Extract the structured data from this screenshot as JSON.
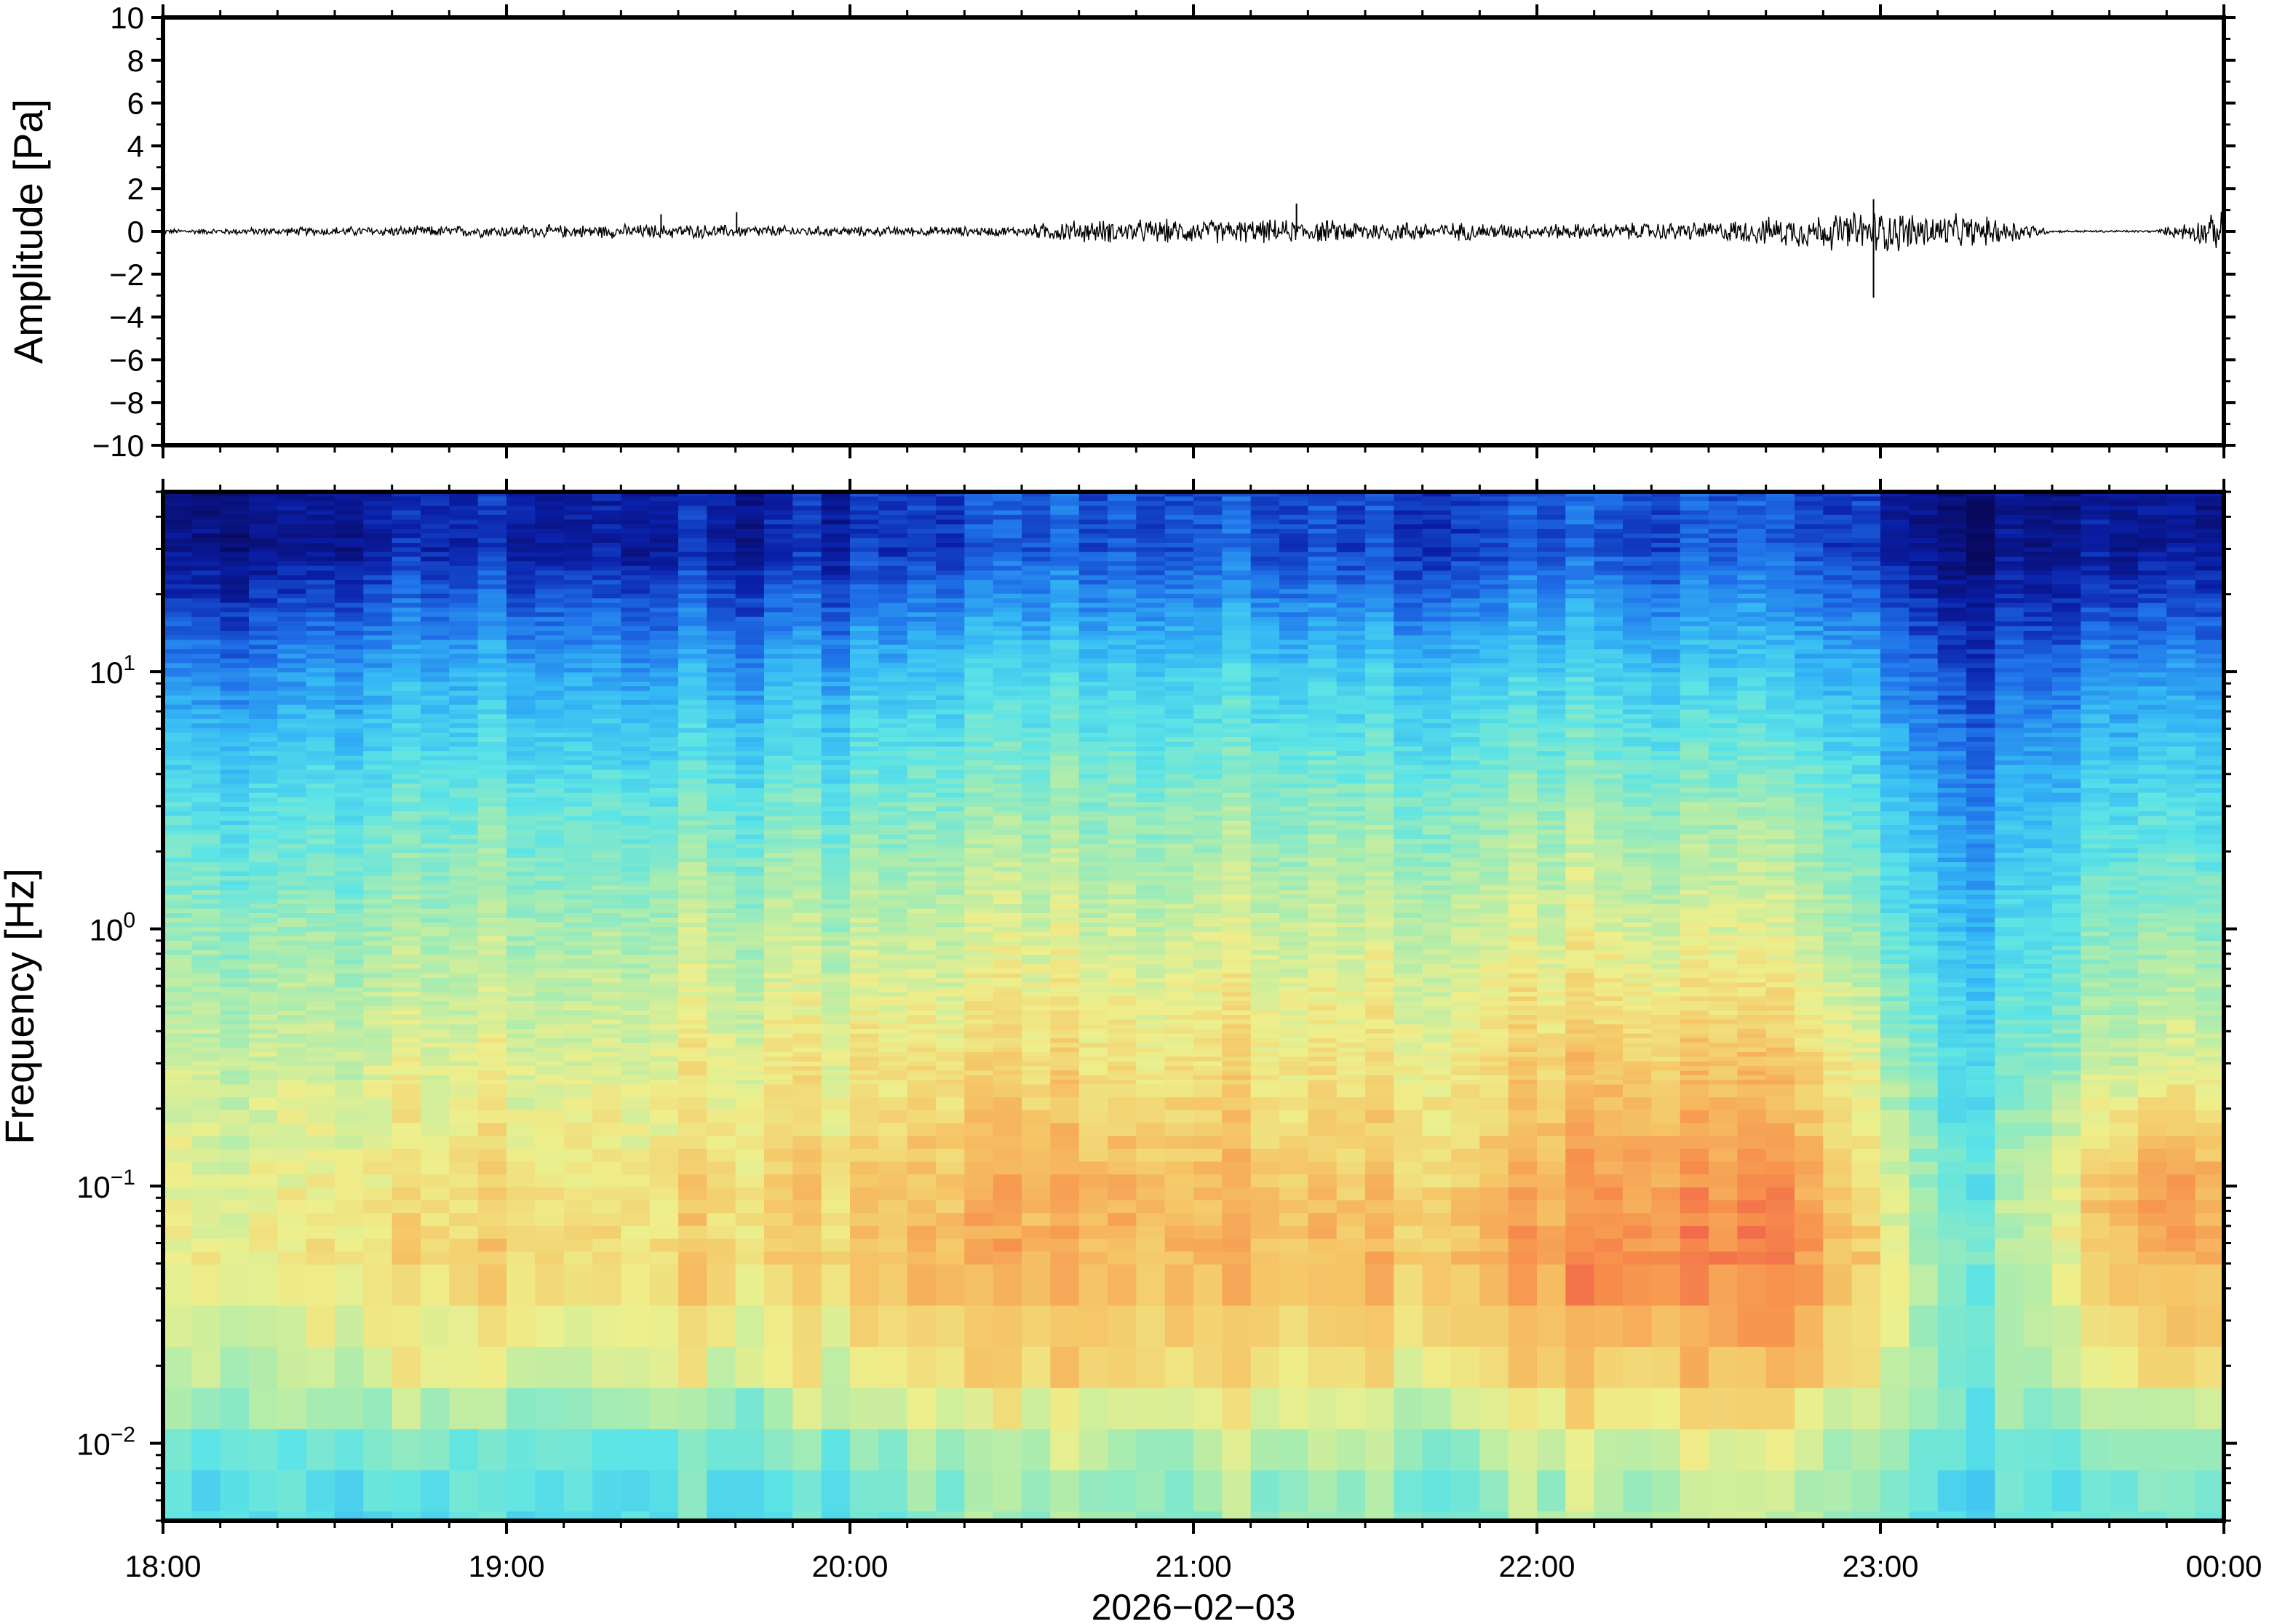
{
  "chart_data": [
    {
      "type": "line",
      "panel": "waveform",
      "xlabel": "",
      "ylabel": "Amplitude [Pa]",
      "ylim": [
        -10,
        10
      ],
      "yticks": [
        10,
        8,
        6,
        4,
        2,
        0,
        -2,
        -4,
        -6,
        -8,
        -10
      ],
      "ytick_labels": [
        "10",
        "8",
        "6",
        "4",
        "2",
        "0",
        "−2",
        "−4",
        "−6",
        "−8",
        "−10"
      ],
      "x_range": [
        "18:00",
        "00:00"
      ],
      "envelope": {
        "x_hours": [
          0,
          0.5,
          1,
          1.5,
          2,
          2.5,
          2.6,
          3,
          3.5,
          4,
          4.5,
          4.8,
          5,
          5.4,
          5.5,
          5.8,
          6
        ],
        "amplitude_pa": [
          0.1,
          0.2,
          0.25,
          0.3,
          0.2,
          0.2,
          0.45,
          0.5,
          0.45,
          0.3,
          0.4,
          0.7,
          0.9,
          0.5,
          0.05,
          0.05,
          0.8
        ]
      },
      "spikes": [
        {
          "x_hour": 1.45,
          "y_pa": 0.8
        },
        {
          "x_hour": 1.67,
          "y_pa": 0.9
        },
        {
          "x_hour": 3.3,
          "y_pa": 1.3
        },
        {
          "x_hour": 4.98,
          "y_pa": -3.1
        },
        {
          "x_hour": 4.98,
          "y_pa": 1.5
        }
      ]
    },
    {
      "type": "heatmap",
      "panel": "spectrogram",
      "xlabel": "2026−02−03",
      "ylabel": "Frequency [Hz]",
      "y_scale": "log",
      "ylim_hz": [
        0.005,
        50
      ],
      "ytick_hz": [
        10,
        1,
        0.1,
        0.01
      ],
      "ytick_mantissa": [
        "10",
        "10",
        "10",
        "10"
      ],
      "ytick_exponent": [
        "1",
        "0",
        "−1",
        "−2"
      ],
      "x_ticks": [
        "18:00",
        "19:00",
        "20:00",
        "21:00",
        "22:00",
        "23:00",
        "00:00"
      ],
      "colormap": [
        "#08085c",
        "#0a1fa8",
        "#1f6fe8",
        "#35b9f5",
        "#5ce4e6",
        "#a8ecb0",
        "#eeef8c",
        "#f5c566",
        "#f7904c",
        "#ee4f4a"
      ],
      "x_hours": [
        0.25,
        0.75,
        1.25,
        1.75,
        2.25,
        2.75,
        3.25,
        3.75,
        4.25,
        4.75,
        5.25,
        5.75
      ],
      "freq_hz": [
        30,
        10,
        3,
        1,
        0.3,
        0.1,
        0.05,
        0.02,
        0.008
      ],
      "intensity": [
        [
          0.05,
          0.12,
          0.12,
          0.1,
          0.15,
          0.2,
          0.18,
          0.16,
          0.2,
          0.18,
          0.05,
          0.1
        ],
        [
          0.25,
          0.32,
          0.33,
          0.3,
          0.36,
          0.4,
          0.38,
          0.37,
          0.4,
          0.36,
          0.18,
          0.3
        ],
        [
          0.42,
          0.47,
          0.48,
          0.47,
          0.5,
          0.53,
          0.52,
          0.52,
          0.55,
          0.52,
          0.28,
          0.45
        ],
        [
          0.52,
          0.56,
          0.58,
          0.58,
          0.6,
          0.62,
          0.62,
          0.62,
          0.65,
          0.62,
          0.35,
          0.55
        ],
        [
          0.6,
          0.64,
          0.66,
          0.67,
          0.7,
          0.72,
          0.7,
          0.7,
          0.78,
          0.76,
          0.42,
          0.65
        ],
        [
          0.64,
          0.7,
          0.72,
          0.72,
          0.78,
          0.82,
          0.78,
          0.76,
          0.88,
          0.86,
          0.45,
          0.86
        ],
        [
          0.66,
          0.74,
          0.74,
          0.74,
          0.8,
          0.82,
          0.8,
          0.8,
          0.92,
          0.9,
          0.48,
          0.84
        ],
        [
          0.6,
          0.66,
          0.66,
          0.64,
          0.72,
          0.74,
          0.72,
          0.7,
          0.8,
          0.78,
          0.5,
          0.72
        ],
        [
          0.42,
          0.44,
          0.46,
          0.44,
          0.52,
          0.55,
          0.54,
          0.52,
          0.6,
          0.58,
          0.42,
          0.52
        ]
      ]
    }
  ]
}
